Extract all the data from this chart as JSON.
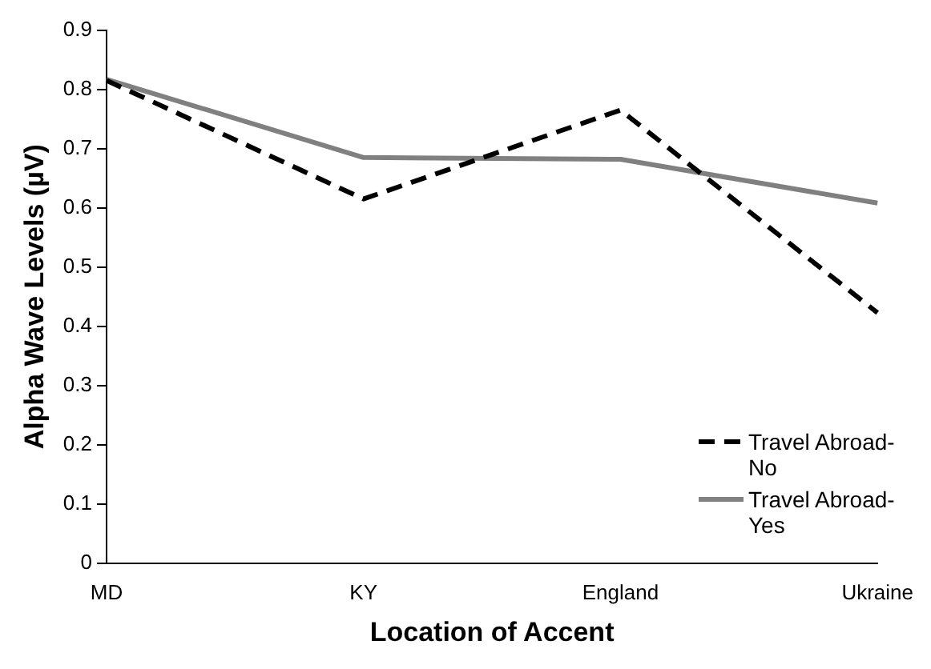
{
  "chart_data": {
    "type": "line",
    "xlabel": "Location of Accent",
    "ylabel": "Alpha Wave Levels (µV)",
    "categories": [
      "MD",
      "KY",
      "England",
      "Ukraine"
    ],
    "series": [
      {
        "name": "Travel Abroad-No",
        "color": "#000000",
        "values": [
          0.815,
          0.615,
          0.765,
          0.423
        ],
        "line_style": "dashed"
      },
      {
        "name": "Travel Abroad-Yes",
        "color": "#808080",
        "values": [
          0.817,
          0.685,
          0.682,
          0.608
        ],
        "line_style": "solid"
      }
    ],
    "ylim": [
      0,
      0.9
    ],
    "yticks": [
      0,
      0.1,
      0.2,
      0.3,
      0.4,
      0.5,
      0.6,
      0.7,
      0.8,
      0.9
    ],
    "grid": false,
    "legend": "bottom right",
    "marker": "none"
  }
}
